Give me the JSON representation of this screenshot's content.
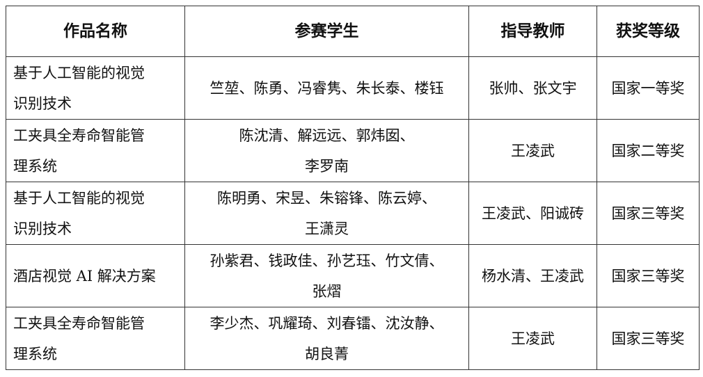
{
  "headers": [
    "作品名称",
    "参赛学生",
    "指导教师",
    "获奖等级"
  ],
  "rows": [
    {
      "work": [
        "基于人工智能的视觉",
        "识别技术"
      ],
      "students": [
        "竺堃、陈勇、冯睿隽、朱长泰、楼钰"
      ],
      "teachers": "张帅、张文宇",
      "award": "国家一等奖"
    },
    {
      "work": [
        "工夹具全寿命智能管",
        "理系统"
      ],
      "students": [
        "陈沈清、解远远、郭炜囡、",
        "李罗南"
      ],
      "teachers": "王凌武",
      "award": "国家二等奖"
    },
    {
      "work": [
        "基于人工智能的视觉",
        "识别技术"
      ],
      "students": [
        "陈明勇、宋昱、朱镕锋、陈云婷、",
        "王潇灵"
      ],
      "teachers": "王凌武、阳诚砖",
      "award": "国家三等奖"
    },
    {
      "work": [
        "酒店视觉 AI 解决方案"
      ],
      "students": [
        "孙紫君、钱政佳、孙艺珏、竹文倩、",
        "张熠"
      ],
      "teachers": "杨水清、王凌武",
      "award": "国家三等奖"
    },
    {
      "work": [
        "工夹具全寿命智能管",
        "理系统"
      ],
      "students": [
        "李少杰、巩耀琦、刘春镭、沈汝静、",
        "胡良菁"
      ],
      "teachers": "王凌武",
      "award": "国家三等奖"
    }
  ]
}
